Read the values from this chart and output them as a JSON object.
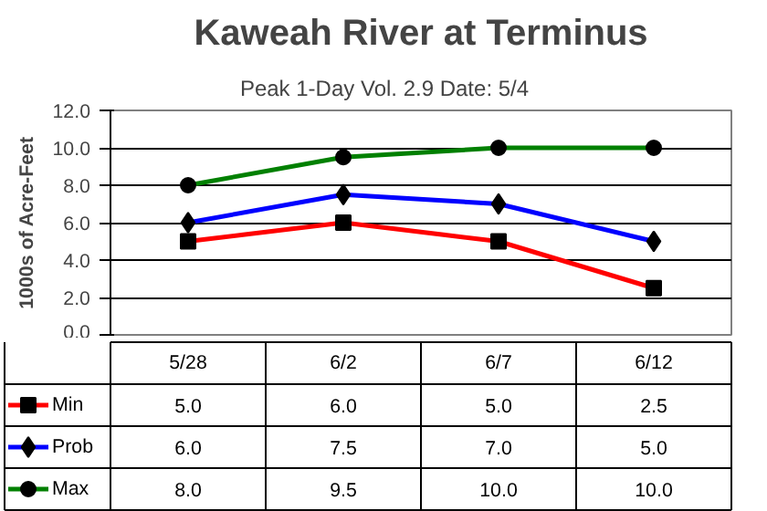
{
  "chart_data": {
    "type": "line",
    "title": "Kaweah River at Terminus",
    "subtitle": "Peak 1-Day Vol.     2.9     Date:     5/4",
    "ylabel": "1000s of Acre-Feet",
    "categories": [
      "5/28",
      "6/2",
      "6/7",
      "6/12"
    ],
    "series": [
      {
        "name": "Min",
        "color": "#ff0000",
        "marker": "square",
        "values": [
          5.0,
          6.0,
          5.0,
          2.5
        ],
        "value_labels": [
          "5.0",
          "6.0",
          "5.0",
          "2.5"
        ]
      },
      {
        "name": "Prob",
        "color": "#0000ff",
        "marker": "diamond",
        "values": [
          6.0,
          7.5,
          7.0,
          5.0
        ],
        "value_labels": [
          "6.0",
          "7.5",
          "7.0",
          "5.0"
        ]
      },
      {
        "name": "Max",
        "color": "#008000",
        "marker": "circle",
        "values": [
          8.0,
          9.5,
          10.0,
          10.0
        ],
        "value_labels": [
          "8.0",
          "9.5",
          "10.0",
          "10.0"
        ]
      }
    ],
    "ylim": [
      0,
      12
    ],
    "yticks": [
      {
        "value": 0,
        "label": "0.0"
      },
      {
        "value": 2,
        "label": "2.0"
      },
      {
        "value": 4,
        "label": "4.0"
      },
      {
        "value": 6,
        "label": "6.0"
      },
      {
        "value": 8,
        "label": "8.0"
      },
      {
        "value": 10,
        "label": "10.0"
      },
      {
        "value": 12,
        "label": "12.0"
      }
    ],
    "grid": "y",
    "line_style": "solid",
    "legend": "bottom"
  }
}
